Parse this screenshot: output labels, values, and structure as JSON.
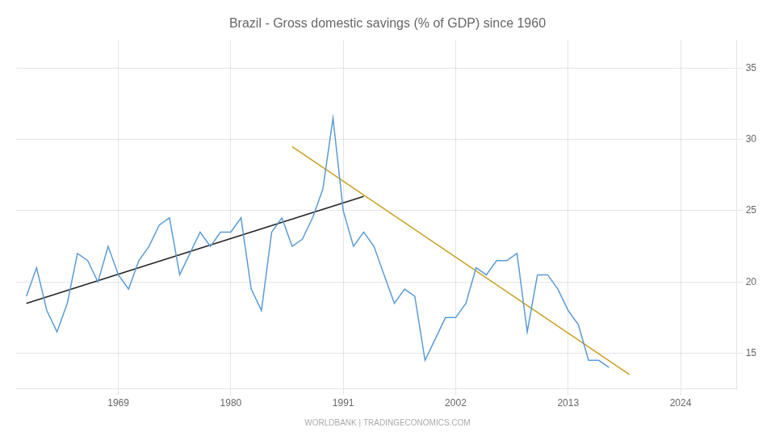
{
  "chart_data": {
    "type": "line",
    "title": "Brazil - Gross domestic savings (% of GDP) since 1960",
    "annotations": [
      "WORLDBANK | TRADINGECONOMICS.COM"
    ],
    "series": [
      {
        "color": "#5b9bd5",
        "x": [
          1960,
          1961,
          1962,
          1963,
          1964,
          1965,
          1966,
          1967,
          1968,
          1969,
          1970,
          1971,
          1972,
          1973,
          1974,
          1975,
          1976,
          1977,
          1978,
          1979,
          1980,
          1981,
          1982,
          1983,
          1984,
          1985,
          1986,
          1987,
          1988,
          1989,
          1990,
          1991,
          1992,
          1993,
          1994,
          1995,
          1996,
          1997,
          1998,
          1999,
          2000,
          2001,
          2002,
          2003,
          2004,
          2005,
          2006,
          2007,
          2008,
          2009,
          2010,
          2011,
          2012,
          2013,
          2014,
          2015,
          2016,
          2017
        ],
        "values": [
          19.0,
          21.0,
          18.0,
          16.5,
          18.5,
          22.0,
          21.5,
          20.0,
          22.5,
          20.5,
          19.5,
          21.5,
          22.5,
          24.0,
          24.5,
          20.5,
          22.0,
          23.5,
          22.5,
          23.5,
          23.5,
          24.5,
          19.5,
          18.0,
          23.5,
          24.5,
          22.5,
          23.0,
          24.5,
          26.5,
          31.5,
          25.0,
          22.5,
          23.5,
          22.5,
          20.5,
          18.5,
          19.5,
          19.0,
          14.5,
          16.0,
          17.5,
          17.5,
          18.5,
          21.0,
          20.5,
          21.5,
          21.5,
          22.0,
          16.5,
          20.5,
          20.5,
          19.5,
          18.0,
          17.0,
          14.5,
          14.5,
          14.0
        ]
      },
      {
        "color": "#222222",
        "x": [
          1960,
          1993
        ],
        "values": [
          18.5,
          26.0
        ]
      },
      {
        "color": "#c8a020",
        "x": [
          1986,
          2019
        ],
        "values": [
          29.5,
          13.5
        ]
      }
    ],
    "xlim": [
      1959.0,
      2029.5
    ],
    "xticks": [
      1969,
      1980,
      1991,
      2002,
      2013,
      2024
    ],
    "ylim": [
      12.5,
      37
    ],
    "yticks": [
      15,
      20,
      25,
      30,
      35
    ],
    "grid": true
  }
}
